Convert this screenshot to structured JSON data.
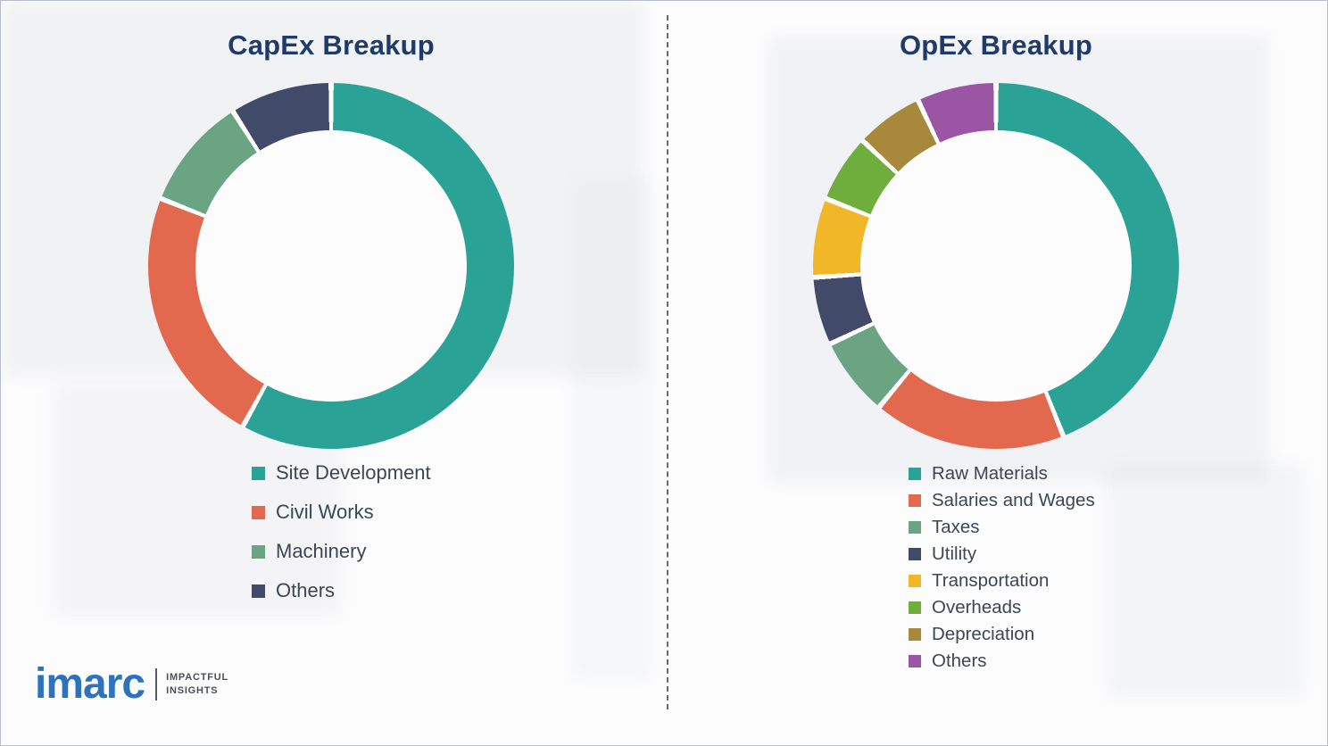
{
  "page": {
    "background_color": "#fcfcfd",
    "divider_style": "vertical-dashed",
    "title_color": "#1f3b69"
  },
  "chart_data": [
    {
      "type": "pie",
      "subtype": "donut",
      "title": "CapEx Breakup",
      "categories": [
        "Site Development",
        "Civil Works",
        "Machinery",
        "Others"
      ],
      "values": [
        58,
        23,
        10,
        9
      ],
      "values_unit": "percent-estimated-from-arc-angles",
      "colors": [
        "#2ba296",
        "#e2684e",
        "#6aa483",
        "#414a68"
      ],
      "start_angle_deg": 0,
      "direction": "clockwise",
      "legend_position": "below-left",
      "hole_ratio": 0.74
    },
    {
      "type": "pie",
      "subtype": "donut",
      "title": "OpEx Breakup",
      "categories": [
        "Raw Materials",
        "Salaries and Wages",
        "Taxes",
        "Utility",
        "Transportation",
        "Overheads",
        "Depreciation",
        "Others"
      ],
      "values": [
        44,
        17,
        7,
        6,
        7,
        6,
        6,
        7
      ],
      "values_unit": "percent-estimated-from-arc-angles",
      "colors": [
        "#2ba296",
        "#e2684e",
        "#6aa483",
        "#414a68",
        "#f2b629",
        "#6fae3c",
        "#a8893c",
        "#9a55a5"
      ],
      "start_angle_deg": 0,
      "direction": "clockwise",
      "legend_position": "below-left",
      "hole_ratio": 0.74
    }
  ],
  "logo": {
    "brand": "imarc",
    "brand_color": "#2d72bd",
    "tagline_line1": "IMPACTFUL",
    "tagline_line2": "INSIGHTS"
  }
}
